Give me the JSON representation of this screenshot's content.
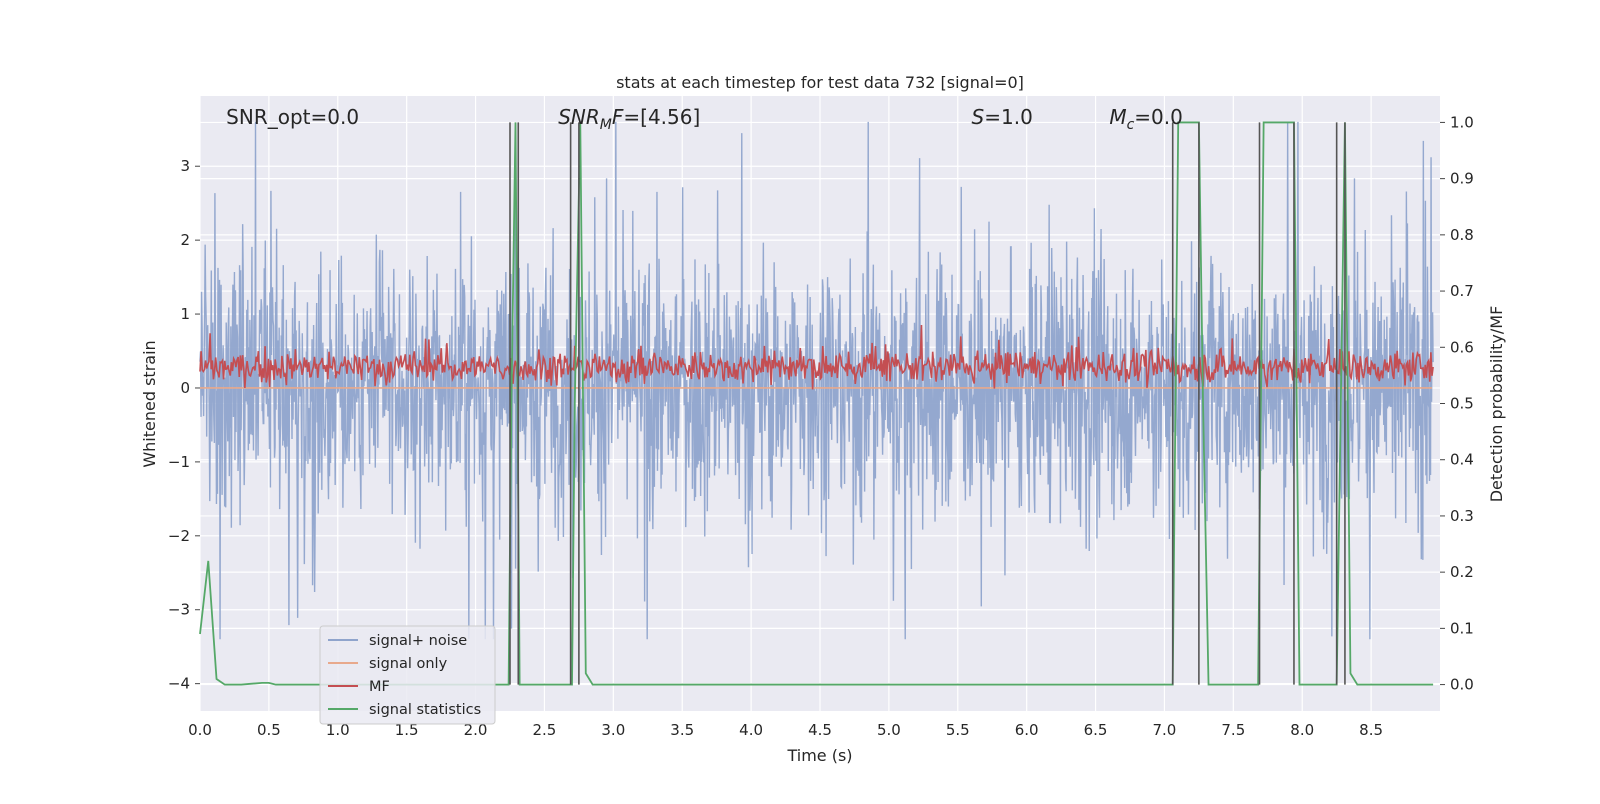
{
  "chart_data": {
    "type": "line",
    "title": "stats at each timestep for test data 732 [signal=0]",
    "xlabel": "Time (s)",
    "ylabel_left": "Whitened strain",
    "ylabel_right": "Detection probability/MF",
    "xlim": [
      0.0,
      9.0
    ],
    "ylim_left": [
      -4.37,
      3.95
    ],
    "ylim_right": [
      -0.047,
      1.047
    ],
    "x_ticks": [
      "0.0",
      "0.5",
      "1.0",
      "1.5",
      "2.0",
      "2.5",
      "3.0",
      "3.5",
      "4.0",
      "4.5",
      "5.0",
      "5.5",
      "6.0",
      "6.5",
      "7.0",
      "7.5",
      "8.0",
      "8.5"
    ],
    "y_ticks_left": [
      "3",
      "2",
      "1",
      "0",
      "−1",
      "−2",
      "−3",
      "−4"
    ],
    "y_ticks_right": [
      "1.0",
      "0.9",
      "0.8",
      "0.7",
      "0.6",
      "0.5",
      "0.4",
      "0.3",
      "0.2",
      "0.1",
      "0.0"
    ],
    "grid": true,
    "legend_position": "lower-left",
    "annotations": [
      {
        "text": "SNR_opt=0.0",
        "x": 0.19
      },
      {
        "text": "SNR_MF=[4.56]",
        "x": 2.6
      },
      {
        "text": "S=1.0",
        "x": 5.6
      },
      {
        "text": "M_c=0.0",
        "x": 6.6
      }
    ],
    "series": [
      {
        "name": "signal+ noise",
        "axis": "left",
        "color": "#8fa4cc",
        "kind": "noise",
        "approx_range": [
          -3.4,
          3.6
        ],
        "typical_std": 0.85
      },
      {
        "name": "signal only",
        "axis": "left",
        "color": "#e8a98c",
        "x": [
          0.0,
          9.0
        ],
        "values": [
          0.0,
          0.0
        ]
      },
      {
        "name": "MF",
        "axis": "left",
        "color": "#c44e52",
        "kind": "noise",
        "approx_mean": 0.28,
        "approx_range": [
          -0.02,
          1.0
        ]
      },
      {
        "name": "signal statistics",
        "axis": "right",
        "color": "#55a868",
        "x": [
          0.0,
          0.06,
          0.12,
          0.18,
          0.3,
          0.45,
          0.5,
          0.55,
          0.7,
          1.0,
          1.5,
          2.0,
          2.24,
          2.26,
          2.29,
          2.32,
          2.35,
          2.5,
          2.7,
          2.72,
          2.76,
          2.8,
          2.85,
          3.0,
          4.0,
          5.0,
          6.0,
          7.0,
          7.06,
          7.1,
          7.12,
          7.25,
          7.28,
          7.32,
          7.5,
          7.68,
          7.72,
          7.94,
          7.98,
          8.1,
          8.25,
          8.28,
          8.31,
          8.35,
          8.4,
          8.95
        ],
        "values": [
          0.09,
          0.22,
          0.01,
          0.0,
          0.0,
          0.003,
          0.003,
          0.0,
          0.0,
          0.0,
          0.0,
          0.0,
          0.0,
          0.5,
          1.0,
          0.0,
          0.0,
          0.0,
          0.0,
          0.5,
          1.0,
          0.02,
          0.0,
          0.0,
          0.0,
          0.0,
          0.0,
          0.0,
          0.0,
          1.0,
          1.0,
          1.0,
          0.5,
          0.0,
          0.0,
          0.0,
          1.0,
          1.0,
          0.0,
          0.0,
          0.0,
          0.5,
          1.0,
          0.02,
          0.0,
          0.0
        ]
      }
    ],
    "vertical_markers": {
      "color": "#555555",
      "x": [
        2.25,
        2.31,
        2.69,
        2.75,
        7.06,
        7.25,
        7.69,
        7.94,
        8.25,
        8.31
      ]
    }
  }
}
